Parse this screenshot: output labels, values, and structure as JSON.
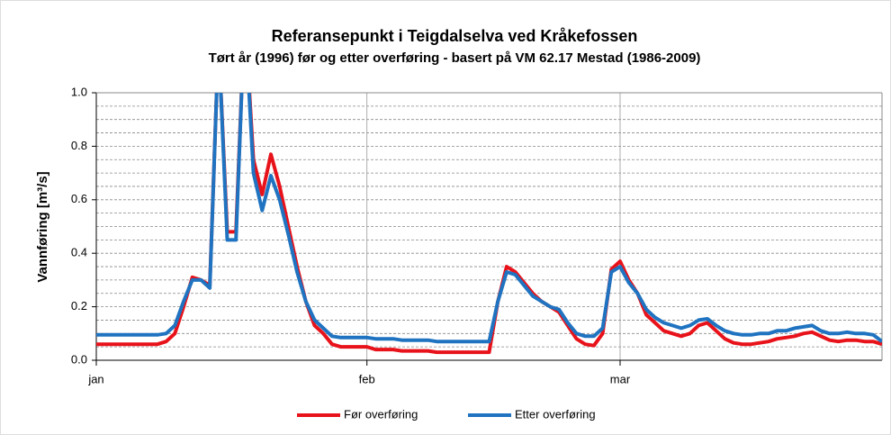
{
  "chart_data": {
    "type": "line",
    "title": "Referansepunkt i Teigdalselva ved Kråkefossen",
    "subtitle": "Tørt år (1996) før og etter overføring - basert på VM 62.17 Mestad (1986-2009)",
    "ylabel": "Vannføring [m³/s]",
    "categories": [
      "jan",
      null,
      null,
      null,
      null,
      null,
      null,
      null,
      null,
      null,
      null,
      null,
      null,
      null,
      null,
      null,
      null,
      null,
      null,
      null,
      null,
      null,
      null,
      null,
      null,
      null,
      null,
      null,
      null,
      null,
      null,
      "feb",
      null,
      null,
      null,
      null,
      null,
      null,
      null,
      null,
      null,
      null,
      null,
      null,
      null,
      null,
      null,
      null,
      null,
      null,
      null,
      null,
      null,
      null,
      null,
      null,
      null,
      null,
      null,
      null,
      "mar",
      null,
      null,
      null,
      null,
      null,
      null,
      null,
      null,
      null,
      null,
      null,
      null,
      null,
      null,
      null,
      null,
      null,
      null,
      null,
      null,
      null,
      null,
      null,
      null,
      null,
      null,
      null,
      null,
      null,
      null
    ],
    "series": [
      {
        "name": "Før overføring",
        "color": "#e8121a",
        "values": [
          0.06,
          0.06,
          0.06,
          0.06,
          0.06,
          0.06,
          0.06,
          0.06,
          0.07,
          0.1,
          0.2,
          0.31,
          0.3,
          0.28,
          1.2,
          0.48,
          0.48,
          1.3,
          0.75,
          0.62,
          0.77,
          0.65,
          0.5,
          0.35,
          0.22,
          0.13,
          0.1,
          0.06,
          0.05,
          0.05,
          0.05,
          0.05,
          0.04,
          0.04,
          0.04,
          0.035,
          0.035,
          0.035,
          0.035,
          0.03,
          0.03,
          0.03,
          0.03,
          0.03,
          0.03,
          0.03,
          0.22,
          0.35,
          0.33,
          0.29,
          0.25,
          0.22,
          0.2,
          0.18,
          0.13,
          0.08,
          0.06,
          0.055,
          0.1,
          0.34,
          0.37,
          0.3,
          0.25,
          0.17,
          0.14,
          0.11,
          0.1,
          0.09,
          0.1,
          0.13,
          0.14,
          0.11,
          0.08,
          0.065,
          0.06,
          0.06,
          0.065,
          0.07,
          0.08,
          0.085,
          0.09,
          0.1,
          0.105,
          0.09,
          0.075,
          0.07,
          0.075,
          0.075,
          0.07,
          0.07,
          0.06
        ]
      },
      {
        "name": "Etter overføring",
        "color": "#1f73c0",
        "values": [
          0.095,
          0.095,
          0.095,
          0.095,
          0.095,
          0.095,
          0.095,
          0.095,
          0.1,
          0.13,
          0.22,
          0.3,
          0.3,
          0.27,
          1.2,
          0.45,
          0.45,
          1.3,
          0.7,
          0.56,
          0.69,
          0.6,
          0.47,
          0.33,
          0.22,
          0.15,
          0.12,
          0.09,
          0.085,
          0.085,
          0.085,
          0.085,
          0.08,
          0.08,
          0.08,
          0.075,
          0.075,
          0.075,
          0.075,
          0.07,
          0.07,
          0.07,
          0.07,
          0.07,
          0.07,
          0.07,
          0.22,
          0.33,
          0.32,
          0.28,
          0.24,
          0.22,
          0.2,
          0.19,
          0.14,
          0.1,
          0.09,
          0.09,
          0.12,
          0.33,
          0.35,
          0.29,
          0.25,
          0.19,
          0.16,
          0.14,
          0.13,
          0.12,
          0.13,
          0.15,
          0.155,
          0.13,
          0.11,
          0.1,
          0.095,
          0.095,
          0.1,
          0.1,
          0.11,
          0.11,
          0.12,
          0.125,
          0.13,
          0.11,
          0.1,
          0.1,
          0.105,
          0.1,
          0.1,
          0.095,
          0.07
        ]
      }
    ],
    "ylim": [
      0,
      1
    ],
    "yticks": [
      {
        "value": 0,
        "label": "0.0"
      },
      0.2,
      0.4,
      0.6,
      0.8,
      {
        "value": 1,
        "label": "1.0"
      }
    ],
    "minor_grid": [
      0.05,
      0.1,
      0.15,
      0.25,
      0.3,
      0.35,
      0.45,
      0.5,
      0.55,
      0.65,
      0.7,
      0.75,
      0.85,
      0.9,
      0.95
    ],
    "grid": true,
    "xgrid": true,
    "legend": "bottom"
  }
}
